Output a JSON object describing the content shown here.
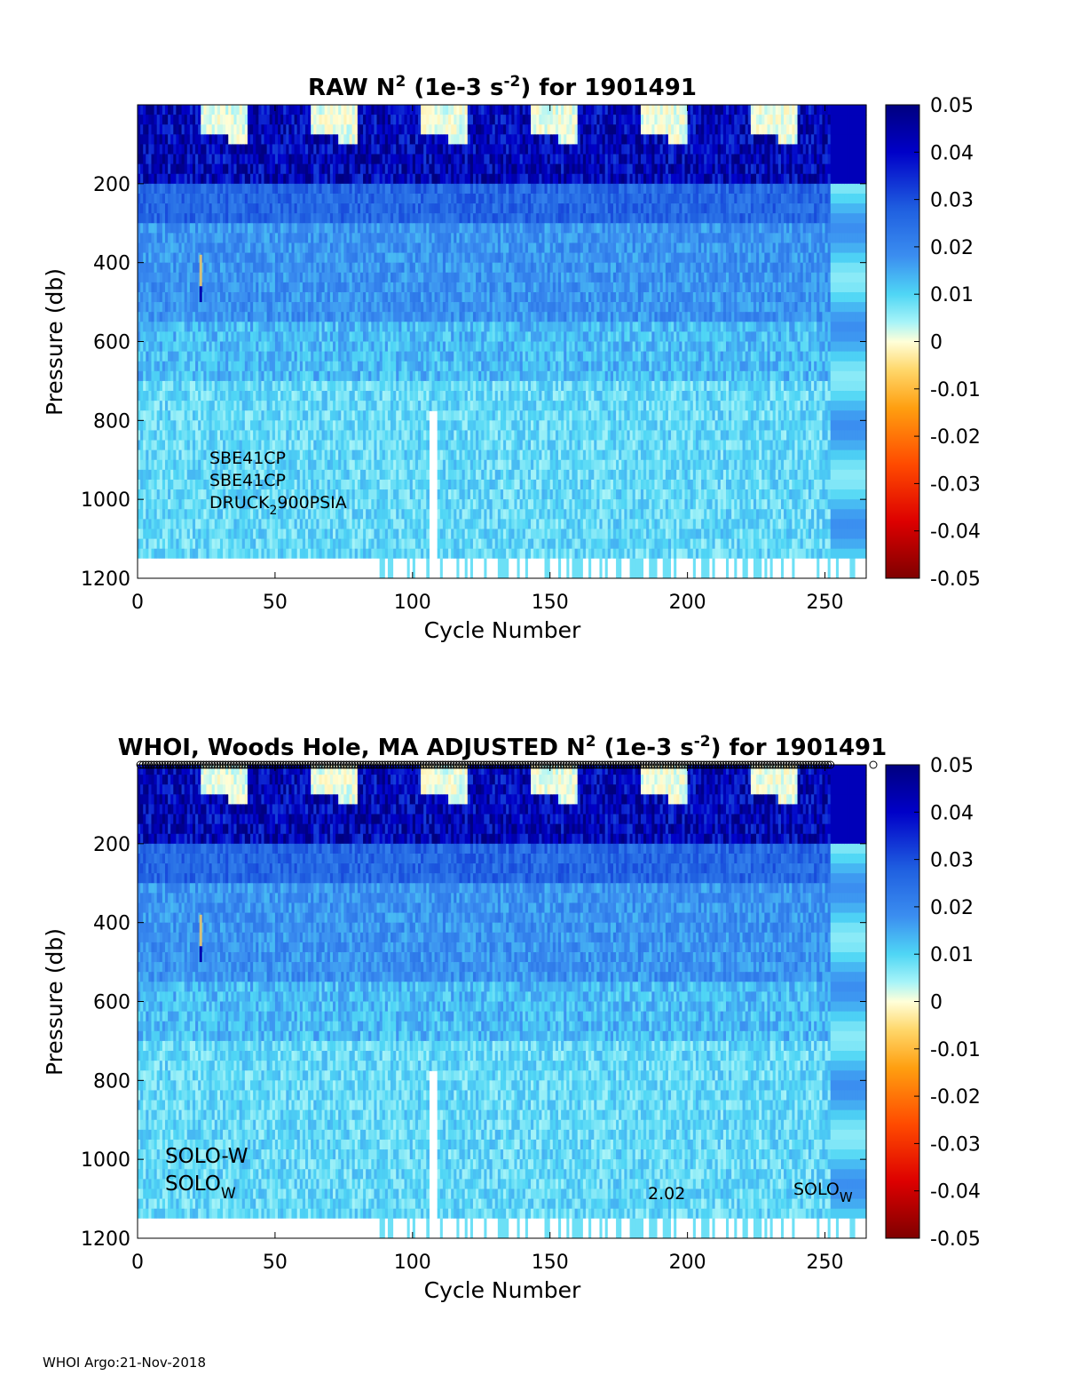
{
  "footer": "WHOI Argo:21-Nov-2018",
  "chart_data": [
    {
      "type": "heatmap",
      "title_parts": [
        "RAW N",
        "2",
        " (1e-3 s",
        "-2",
        ") for 1901491"
      ],
      "xlabel": "Cycle Number",
      "ylabel": "Pressure (db)",
      "xlim": [
        0,
        265
      ],
      "ylim": [
        0,
        1200
      ],
      "y_reversed": true,
      "xticks": [
        "0",
        "50",
        "100",
        "150",
        "200",
        "250"
      ],
      "yticks": [
        "200",
        "400",
        "600",
        "800",
        "1000",
        "1200"
      ],
      "colorbar": {
        "range": [
          -0.05,
          0.05
        ],
        "ticks": [
          "0.05",
          "0.04",
          "0.03",
          "0.02",
          "0.01",
          "0",
          "-0.01",
          "-0.02",
          "-0.03",
          "-0.04",
          "-0.05"
        ],
        "colormap": "blue-cyan-white-yellow-red"
      },
      "annotations": [
        {
          "text": "SBE41CP"
        },
        {
          "text": "SBE41CP"
        },
        {
          "text": "DRUCK",
          "sub": "2",
          "tail": "900PSIA"
        }
      ]
    },
    {
      "type": "heatmap",
      "title_parts": [
        "WHOI, Woods Hole, MA  ADJUSTED N",
        "2",
        " (1e-3 s",
        "-2",
        ") for 1901491"
      ],
      "xlabel": "Cycle Number",
      "ylabel": "Pressure (db)",
      "xlim": [
        0,
        265
      ],
      "ylim": [
        0,
        1200
      ],
      "y_reversed": true,
      "xticks": [
        "0",
        "50",
        "100",
        "150",
        "200",
        "250"
      ],
      "yticks": [
        "200",
        "400",
        "600",
        "800",
        "1000",
        "1200"
      ],
      "colorbar": {
        "range": [
          -0.05,
          0.05
        ],
        "ticks": [
          "0.05",
          "0.04",
          "0.03",
          "0.02",
          "0.01",
          "0",
          "-0.01",
          "-0.02",
          "-0.03",
          "-0.04",
          "-0.05"
        ],
        "colormap": "blue-cyan-white-yellow-red"
      },
      "annotations": [
        {
          "text": "SOLO-W"
        },
        {
          "text": "SOLO",
          "sub": "W"
        },
        {
          "text": "2.02"
        },
        {
          "text": "SOLO",
          "sub": "W"
        }
      ],
      "top_markers": "circles"
    }
  ]
}
